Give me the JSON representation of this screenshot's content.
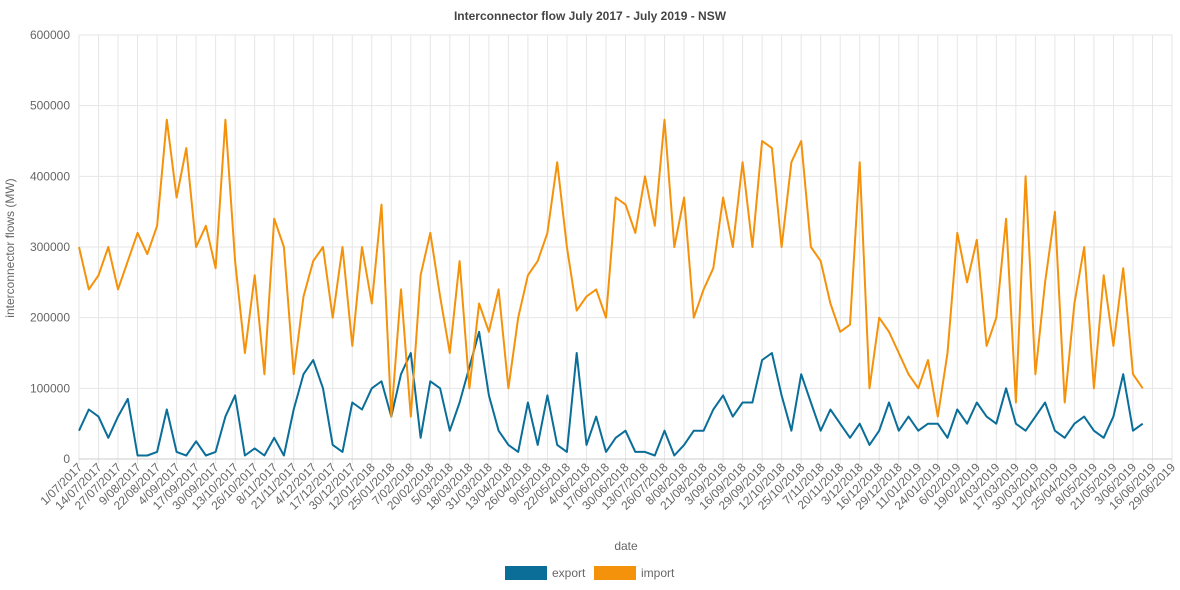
{
  "chart_data": {
    "type": "line",
    "title": "Interconnector flow July 2017 - July 2019 - NSW",
    "xlabel": "date",
    "ylabel": "interconnector flows (MW)",
    "ylim": [
      0,
      600000
    ],
    "y_ticks": [
      "0",
      "100000",
      "200000",
      "300000",
      "400000",
      "500000",
      "600000"
    ],
    "grid": true,
    "legend_position": "bottom-center",
    "x_tick_labels": [
      "1/07/2017",
      "14/07/2017",
      "27/07/2017",
      "9/08/2017",
      "22/08/2017",
      "4/09/2017",
      "17/09/2017",
      "30/09/2017",
      "13/10/2017",
      "26/10/2017",
      "8/11/2017",
      "21/11/2017",
      "4/12/2017",
      "17/12/2017",
      "30/12/2017",
      "12/01/2018",
      "25/01/2018",
      "7/02/2018",
      "20/02/2018",
      "5/03/2018",
      "18/03/2018",
      "31/03/2018",
      "13/04/2018",
      "26/04/2018",
      "9/05/2018",
      "22/05/2018",
      "4/06/2018",
      "17/06/2018",
      "30/06/2018",
      "13/07/2018",
      "26/07/2018",
      "8/08/2018",
      "21/08/2018",
      "3/09/2018",
      "16/09/2018",
      "29/09/2018",
      "12/10/2018",
      "25/10/2018",
      "7/11/2018",
      "20/11/2018",
      "3/12/2018",
      "16/12/2018",
      "29/12/2018",
      "11/01/2019",
      "24/01/2019",
      "6/02/2019",
      "19/02/2019",
      "4/03/2019",
      "17/03/2019",
      "30/03/2019",
      "12/04/2019",
      "25/04/2019",
      "8/05/2019",
      "21/05/2019",
      "3/06/2019",
      "16/06/2019",
      "29/06/2019"
    ],
    "x_tick_interval_days": 13,
    "series": [
      {
        "name": "export",
        "color": "#0a6e99",
        "sampled_every_days": 6.5,
        "values": [
          40000,
          70000,
          60000,
          30000,
          60000,
          85000,
          5000,
          5000,
          10000,
          70000,
          10000,
          5000,
          25000,
          5000,
          10000,
          60000,
          90000,
          5000,
          15000,
          5000,
          30000,
          5000,
          70000,
          120000,
          140000,
          100000,
          20000,
          10000,
          80000,
          70000,
          100000,
          110000,
          60000,
          120000,
          150000,
          30000,
          110000,
          100000,
          40000,
          80000,
          130000,
          180000,
          90000,
          40000,
          20000,
          10000,
          80000,
          20000,
          90000,
          20000,
          10000,
          150000,
          20000,
          60000,
          10000,
          30000,
          40000,
          10000,
          10000,
          5000,
          40000,
          5000,
          20000,
          40000,
          40000,
          70000,
          90000,
          60000,
          80000,
          80000,
          140000,
          150000,
          90000,
          40000,
          120000,
          80000,
          40000,
          70000,
          50000,
          30000,
          50000,
          20000,
          40000,
          80000,
          40000,
          60000,
          40000,
          50000,
          50000,
          30000,
          70000,
          50000,
          80000,
          60000,
          50000,
          100000,
          50000,
          40000,
          60000,
          80000,
          40000,
          30000,
          50000,
          60000,
          40000,
          30000,
          60000,
          120000,
          40000,
          50000
        ]
      },
      {
        "name": "import",
        "color": "#f5920b",
        "sampled_every_days": 6.5,
        "values": [
          300000,
          240000,
          260000,
          300000,
          240000,
          280000,
          320000,
          290000,
          330000,
          480000,
          370000,
          440000,
          300000,
          330000,
          270000,
          480000,
          280000,
          150000,
          260000,
          120000,
          340000,
          300000,
          120000,
          230000,
          280000,
          300000,
          200000,
          300000,
          160000,
          300000,
          220000,
          360000,
          60000,
          240000,
          60000,
          260000,
          320000,
          230000,
          150000,
          280000,
          100000,
          220000,
          180000,
          240000,
          100000,
          200000,
          260000,
          280000,
          320000,
          420000,
          300000,
          210000,
          230000,
          240000,
          200000,
          370000,
          360000,
          320000,
          400000,
          330000,
          480000,
          300000,
          370000,
          200000,
          240000,
          270000,
          370000,
          300000,
          420000,
          300000,
          450000,
          440000,
          300000,
          420000,
          450000,
          300000,
          280000,
          220000,
          180000,
          190000,
          420000,
          100000,
          200000,
          180000,
          150000,
          120000,
          100000,
          140000,
          60000,
          150000,
          320000,
          250000,
          310000,
          160000,
          200000,
          340000,
          80000,
          400000,
          120000,
          250000,
          350000,
          80000,
          220000,
          300000,
          100000,
          260000,
          160000,
          270000,
          120000,
          100000
        ]
      }
    ]
  }
}
